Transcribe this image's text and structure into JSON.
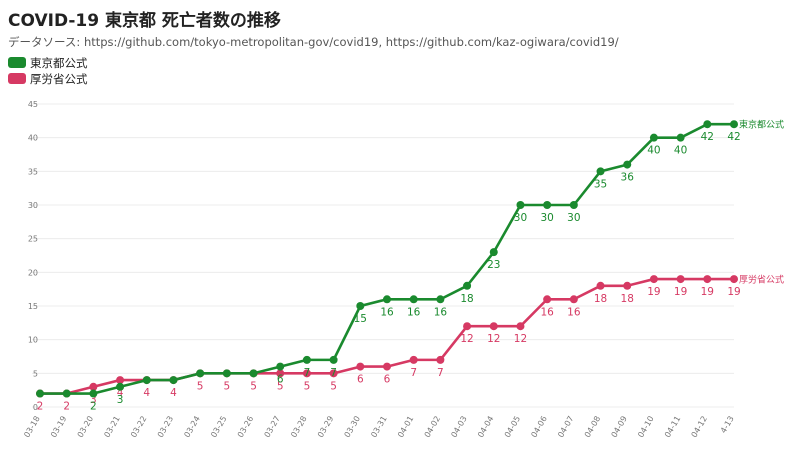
{
  "title": "COVID-19 東京都 死亡者数の推移",
  "subtitle": "データソース: https://github.com/tokyo-metropolitan-gov/covid19, https://github.com/kaz-ogiwara/covid19/",
  "colors": {
    "tokyo": "#1a8a2e",
    "mhlw": "#d63963",
    "grid": "#ececec"
  },
  "chart_data": {
    "type": "line",
    "title": "COVID-19 東京都 死亡者数の推移",
    "xlabel": "",
    "ylabel": "",
    "ylim": [
      0,
      45
    ],
    "yticks": [
      0,
      5,
      10,
      15,
      20,
      25,
      30,
      35,
      40,
      45
    ],
    "grid": true,
    "legend_position": "top-left",
    "categories": [
      "03-18",
      "03-19",
      "03-20",
      "03-21",
      "03-22",
      "03-23",
      "03-24",
      "03-25",
      "03-26",
      "03-27",
      "03-28",
      "03-29",
      "03-30",
      "03-31",
      "04-01",
      "04-02",
      "04-03",
      "04-04",
      "04-05",
      "04-06",
      "04-07",
      "04-08",
      "04-09",
      "04-10",
      "04-11",
      "04-12",
      "4-13"
    ],
    "series": [
      {
        "name": "東京都公式",
        "end_label": "東京都公式",
        "color_key": "tokyo",
        "values": [
          2,
          2,
          2,
          3,
          4,
          4,
          5,
          5,
          5,
          6,
          7,
          7,
          15,
          16,
          16,
          16,
          18,
          23,
          30,
          30,
          30,
          35,
          36,
          40,
          40,
          42,
          42
        ],
        "labels": [
          "",
          "",
          "2",
          "3",
          "",
          "",
          "",
          "",
          "",
          "6",
          "7",
          "7",
          "15",
          "16",
          "16",
          "16",
          "18",
          "23",
          "30",
          "30",
          "30",
          "35",
          "36",
          "40",
          "40",
          "42",
          "42"
        ]
      },
      {
        "name": "厚労省公式",
        "end_label": "厚労省公式",
        "color_key": "mhlw",
        "values": [
          2,
          2,
          3,
          4,
          4,
          4,
          5,
          5,
          5,
          5,
          5,
          5,
          6,
          6,
          7,
          7,
          12,
          12,
          12,
          16,
          16,
          18,
          18,
          19,
          19,
          19,
          19
        ],
        "labels": [
          "2",
          "2",
          "3",
          "4",
          "4",
          "4",
          "5",
          "5",
          "5",
          "5",
          "5",
          "5",
          "6",
          "6",
          "7",
          "7",
          "12",
          "12",
          "12",
          "16",
          "16",
          "18",
          "18",
          "19",
          "19",
          "19",
          "19"
        ]
      }
    ]
  }
}
